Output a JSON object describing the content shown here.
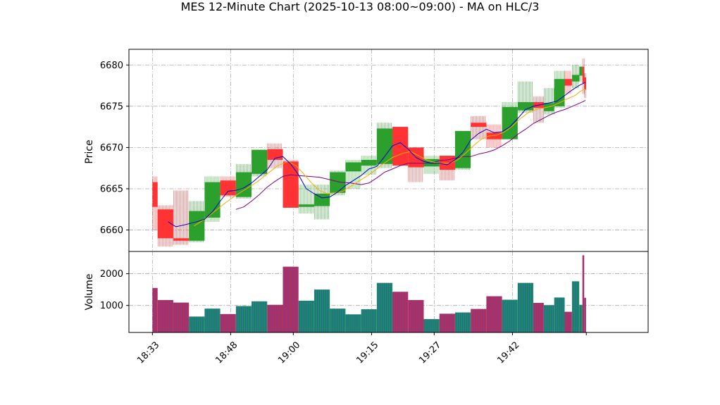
{
  "chart_data": {
    "type": "candlestick",
    "title": "MES 12-Minute Chart (2025-10-13 08:00~09:00) - MA on HLC/3",
    "price_panel": {
      "ylabel": "Price",
      "yticks": [
        6660,
        6665,
        6670,
        6675,
        6680
      ],
      "ylim": [
        6657.4,
        6681.9
      ],
      "grid": true
    },
    "volume_panel": {
      "ylabel": "Volume",
      "yticks": [
        1000,
        2000
      ],
      "ylim": [
        150,
        2700
      ],
      "grid": true
    },
    "xticks": [
      {
        "t": 0,
        "label": "18:33"
      },
      {
        "t": 15,
        "label": "18:48"
      },
      {
        "t": 27,
        "label": "19:00"
      },
      {
        "t": 42,
        "label": "19:15"
      },
      {
        "t": 54,
        "label": "19:27"
      },
      {
        "t": 69,
        "label": "19:42"
      }
    ],
    "xlim": [
      -4.5,
      95
    ],
    "colors": {
      "up": "#2ca02c",
      "down": "#ff3333",
      "ma_fast": "#0000cc",
      "ma_mid": "#ffaa00",
      "ma_slow": "#800080",
      "vol_up": "#1a8a6a",
      "vol_down": "#b03060"
    },
    "bars": [
      {
        "t": 0,
        "w": 1,
        "o": 6665.8,
        "h": 6666.5,
        "l": 6660.0,
        "c": 6662.8,
        "v": 1550
      },
      {
        "t": 1,
        "w": 3,
        "o": 6662.5,
        "h": 6663.0,
        "l": 6658.0,
        "c": 6659.0,
        "v": 1170
      },
      {
        "t": 4,
        "w": 3,
        "o": 6659.0,
        "h": 6664.8,
        "l": 6658.2,
        "c": 6658.7,
        "v": 1090
      },
      {
        "t": 7,
        "w": 3,
        "o": 6658.7,
        "h": 6663.5,
        "l": 6658.5,
        "c": 6662.3,
        "v": 650
      },
      {
        "t": 10,
        "w": 3,
        "o": 6661.5,
        "h": 6666.5,
        "l": 6661.0,
        "c": 6665.8,
        "v": 900
      },
      {
        "t": 13,
        "w": 3,
        "o": 6666.0,
        "h": 6666.5,
        "l": 6664.0,
        "c": 6664.2,
        "v": 730
      },
      {
        "t": 16,
        "w": 3,
        "o": 6664.0,
        "h": 6668.0,
        "l": 6663.8,
        "c": 6667.0,
        "v": 980
      },
      {
        "t": 19,
        "w": 3,
        "o": 6666.8,
        "h": 6669.8,
        "l": 6666.5,
        "c": 6669.7,
        "v": 1130
      },
      {
        "t": 22,
        "w": 3,
        "o": 6669.8,
        "h": 6670.5,
        "l": 6667.5,
        "c": 6668.5,
        "v": 1020
      },
      {
        "t": 25,
        "w": 3,
        "o": 6668.3,
        "h": 6668.5,
        "l": 6662.7,
        "c": 6662.7,
        "v": 2220
      },
      {
        "t": 28,
        "w": 3,
        "o": 6662.8,
        "h": 6665.5,
        "l": 6662.0,
        "c": 6663.1,
        "v": 1150
      },
      {
        "t": 31,
        "w": 3,
        "o": 6662.9,
        "h": 6665.5,
        "l": 6661.3,
        "c": 6664.4,
        "v": 1500
      },
      {
        "t": 34,
        "w": 3,
        "o": 6664.5,
        "h": 6667.2,
        "l": 6664.2,
        "c": 6667.0,
        "v": 900
      },
      {
        "t": 37,
        "w": 3,
        "o": 6667.1,
        "h": 6668.5,
        "l": 6665.0,
        "c": 6668.2,
        "v": 720
      },
      {
        "t": 40,
        "w": 3,
        "o": 6667.8,
        "h": 6669.0,
        "l": 6666.7,
        "c": 6668.5,
        "v": 880
      },
      {
        "t": 43,
        "w": 3,
        "o": 6668.0,
        "h": 6673.0,
        "l": 6667.5,
        "c": 6672.3,
        "v": 1710
      },
      {
        "t": 46,
        "w": 3,
        "o": 6672.5,
        "h": 6672.5,
        "l": 6668.0,
        "c": 6667.8,
        "v": 1430
      },
      {
        "t": 49,
        "w": 3,
        "o": 6670.0,
        "h": 6670.0,
        "l": 6665.8,
        "c": 6667.6,
        "v": 1170
      },
      {
        "t": 52,
        "w": 3,
        "o": 6667.7,
        "h": 6669.0,
        "l": 6666.8,
        "c": 6668.6,
        "v": 570
      },
      {
        "t": 55,
        "w": 3,
        "o": 6669.0,
        "h": 6669.0,
        "l": 6666.0,
        "c": 6667.3,
        "v": 740
      },
      {
        "t": 58,
        "w": 3,
        "o": 6667.5,
        "h": 6672.0,
        "l": 6667.3,
        "c": 6672.0,
        "v": 780
      },
      {
        "t": 61,
        "w": 3,
        "o": 6673.0,
        "h": 6673.8,
        "l": 6671.0,
        "c": 6672.5,
        "v": 890
      },
      {
        "t": 64,
        "w": 3,
        "o": 6671.8,
        "h": 6672.8,
        "l": 6670.0,
        "c": 6671.0,
        "v": 1290
      },
      {
        "t": 67,
        "w": 3,
        "o": 6671.0,
        "h": 6675.5,
        "l": 6671.0,
        "c": 6674.9,
        "v": 1180
      },
      {
        "t": 70,
        "w": 3,
        "o": 6674.5,
        "h": 6678.0,
        "l": 6674.2,
        "c": 6675.5,
        "v": 1710
      },
      {
        "t": 73,
        "w": 2,
        "o": 6675.5,
        "h": 6676.2,
        "l": 6673.0,
        "c": 6674.8,
        "v": 1080
      },
      {
        "t": 75,
        "w": 2,
        "o": 6674.4,
        "h": 6677.2,
        "l": 6674.0,
        "c": 6675.4,
        "v": 1010
      },
      {
        "t": 77,
        "w": 2,
        "o": 6675.0,
        "h": 6679.3,
        "l": 6674.8,
        "c": 6678.3,
        "v": 1250
      },
      {
        "t": 79,
        "w": 1.4,
        "o": 6678.3,
        "h": 6679.3,
        "l": 6676.5,
        "c": 6677.5,
        "v": 800
      },
      {
        "t": 80.4,
        "w": 1.4,
        "o": 6678.0,
        "h": 6680.0,
        "l": 6677.2,
        "c": 6678.8,
        "v": 1760
      },
      {
        "t": 81.8,
        "w": 0.6,
        "o": 6678.7,
        "h": 6679.8,
        "l": 6678.0,
        "c": 6679.8,
        "v": 1020
      },
      {
        "t": 82.4,
        "w": 0.35,
        "o": 6679.8,
        "h": 6680.8,
        "l": 6676.5,
        "c": 6677.8,
        "v": 2580
      },
      {
        "t": 82.75,
        "w": 0.35,
        "o": 6678.5,
        "h": 6679.0,
        "l": 6676.0,
        "c": 6677.0,
        "v": 1240
      }
    ],
    "ma_fast": [
      [
        3,
        6661.0
      ],
      [
        4.5,
        6660.4
      ],
      [
        6,
        6660.6
      ],
      [
        8.5,
        6661.0
      ],
      [
        10,
        6661.3
      ],
      [
        11.5,
        6662.2
      ],
      [
        13,
        6663.5
      ],
      [
        14.5,
        6664.7
      ],
      [
        16,
        6664.8
      ],
      [
        17.5,
        6665.1
      ],
      [
        19,
        6665.7
      ],
      [
        20.5,
        6666.5
      ],
      [
        22,
        6667.3
      ],
      [
        23.5,
        6668.7
      ],
      [
        25,
        6668.9
      ],
      [
        26.5,
        6668.0
      ],
      [
        28,
        6666.7
      ],
      [
        29.5,
        6665.0
      ],
      [
        31,
        6664.4
      ],
      [
        32.5,
        6663.9
      ],
      [
        34,
        6664.0
      ],
      [
        35.5,
        6664.6
      ],
      [
        37,
        6665.4
      ],
      [
        38.5,
        6666.0
      ],
      [
        40,
        6666.6
      ],
      [
        41.5,
        6667.4
      ],
      [
        43,
        6667.7
      ],
      [
        44.5,
        6668.9
      ],
      [
        46,
        6670.2
      ],
      [
        47.5,
        6670.6
      ],
      [
        49,
        6669.8
      ],
      [
        50.5,
        6668.8
      ],
      [
        52,
        6668.3
      ],
      [
        53.5,
        6668.1
      ],
      [
        55,
        6668.1
      ],
      [
        56.5,
        6667.9
      ],
      [
        58,
        6668.5
      ],
      [
        59.5,
        6669.4
      ],
      [
        61,
        6670.9
      ],
      [
        62.5,
        6671.7
      ],
      [
        64,
        6672.2
      ],
      [
        65.5,
        6671.8
      ],
      [
        67,
        6671.9
      ],
      [
        68.5,
        6672.5
      ],
      [
        70,
        6673.5
      ],
      [
        71.5,
        6674.6
      ],
      [
        73,
        6675.0
      ],
      [
        74.5,
        6675.2
      ],
      [
        76,
        6675.4
      ],
      [
        77.5,
        6675.6
      ],
      [
        79,
        6676.3
      ],
      [
        80.5,
        6677.0
      ],
      [
        82,
        6677.6
      ],
      [
        83,
        6677.9
      ]
    ],
    "ma_mid": [
      [
        8,
        6660.5
      ],
      [
        10,
        6661.3
      ],
      [
        12,
        6662.3
      ],
      [
        14,
        6663.3
      ],
      [
        16,
        6664.2
      ],
      [
        18,
        6665.0
      ],
      [
        20,
        6665.8
      ],
      [
        22,
        6666.8
      ],
      [
        24,
        6667.8
      ],
      [
        26,
        6668.3
      ],
      [
        27.5,
        6667.8
      ],
      [
        29,
        6666.8
      ],
      [
        30.5,
        6665.7
      ],
      [
        32,
        6664.8
      ],
      [
        33.5,
        6664.4
      ],
      [
        35,
        6664.5
      ],
      [
        36.5,
        6664.7
      ],
      [
        38,
        6665.3
      ],
      [
        40,
        6666.1
      ],
      [
        42,
        6666.9
      ],
      [
        44,
        6667.9
      ],
      [
        46,
        6668.8
      ],
      [
        48,
        6669.3
      ],
      [
        49.5,
        6669.5
      ],
      [
        51,
        6669.0
      ],
      [
        52.5,
        6668.5
      ],
      [
        54,
        6668.2
      ],
      [
        55.5,
        6668.1
      ],
      [
        57,
        6668.1
      ],
      [
        58.5,
        6668.5
      ],
      [
        60,
        6669.3
      ],
      [
        61.5,
        6670.2
      ],
      [
        63,
        6671.0
      ],
      [
        64.5,
        6671.4
      ],
      [
        66,
        6671.5
      ],
      [
        67.5,
        6671.9
      ],
      [
        69,
        6672.6
      ],
      [
        70.5,
        6673.5
      ],
      [
        72,
        6674.2
      ],
      [
        73.5,
        6674.6
      ],
      [
        75,
        6674.8
      ],
      [
        76.5,
        6675.0
      ],
      [
        78,
        6675.4
      ],
      [
        79.5,
        6675.9
      ],
      [
        81,
        6676.3
      ],
      [
        82,
        6676.8
      ],
      [
        83,
        6677.1
      ]
    ],
    "ma_slow": [
      [
        16,
        6662.5
      ],
      [
        17.5,
        6662.8
      ],
      [
        19,
        6663.5
      ],
      [
        20.5,
        6664.3
      ],
      [
        22,
        6665.2
      ],
      [
        23.5,
        6665.9
      ],
      [
        25,
        6666.5
      ],
      [
        26.5,
        6666.7
      ],
      [
        28,
        6666.6
      ],
      [
        30,
        6666.5
      ],
      [
        32,
        6666.4
      ],
      [
        34,
        6666.1
      ],
      [
        36,
        6665.8
      ],
      [
        38,
        6665.7
      ],
      [
        40,
        6665.5
      ],
      [
        41.5,
        6665.7
      ],
      [
        43,
        6666.3
      ],
      [
        44.5,
        6667.0
      ],
      [
        46,
        6667.4
      ],
      [
        47.5,
        6667.8
      ],
      [
        49,
        6668.1
      ],
      [
        50.5,
        6668.1
      ],
      [
        52,
        6668.1
      ],
      [
        53.5,
        6668.1
      ],
      [
        55,
        6668.4
      ],
      [
        56.5,
        6668.5
      ],
      [
        58,
        6668.7
      ],
      [
        59.5,
        6668.9
      ],
      [
        61,
        6668.9
      ],
      [
        62.5,
        6669.2
      ],
      [
        64,
        6669.4
      ],
      [
        65.5,
        6669.7
      ],
      [
        67,
        6670.2
      ],
      [
        68.5,
        6670.8
      ],
      [
        70,
        6671.6
      ],
      [
        71.5,
        6672.2
      ],
      [
        73,
        6672.9
      ],
      [
        74.5,
        6673.4
      ],
      [
        76,
        6673.9
      ],
      [
        77.5,
        6674.3
      ],
      [
        79,
        6674.6
      ],
      [
        80.5,
        6675.0
      ],
      [
        82,
        6675.4
      ],
      [
        83,
        6675.7
      ]
    ]
  }
}
